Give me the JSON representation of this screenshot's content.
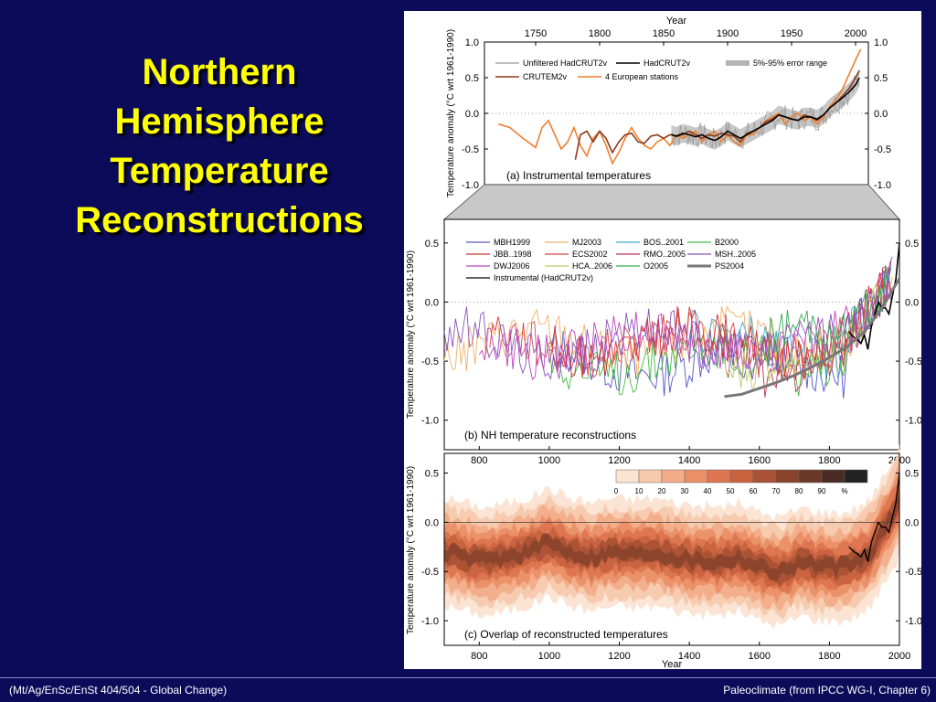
{
  "slide": {
    "title_lines": [
      "Northern",
      "Hemisphere",
      "Temperature",
      "Reconstructions"
    ],
    "footer_left": "(Mt/Ag/EnSc/EnSt 404/504 - Global Change)",
    "footer_right": "Paleoclimate (from IPCC WG-I, Chapter 6)",
    "background": "#0b0b5a",
    "title_color": "#ffff00"
  },
  "chart_data": [
    {
      "type": "line",
      "panel": "a",
      "caption": "(a) Instrumental temperatures",
      "xlabel": "Year",
      "ylabel": "Temperature anomaly  (°C wrt 1961-1990)",
      "xlim": [
        1710,
        2010
      ],
      "ylim": [
        -1.0,
        1.0
      ],
      "xticks": [
        1750,
        1800,
        1850,
        1900,
        1950,
        2000
      ],
      "yticks": [
        1.0,
        0.5,
        0.0,
        -0.5,
        -1.0
      ],
      "ytick_labels": [
        "1.0",
        "0.5",
        "0.0",
        "-0.5",
        "-1.0"
      ],
      "legend": [
        {
          "name": "Unfiltered HadCRUT2v",
          "color": "#aaaaaa"
        },
        {
          "name": "HadCRUT2v",
          "color": "#000000"
        },
        {
          "name": "5%-95% error range",
          "color": "#b4b4b4"
        },
        {
          "name": "CRUTEM2v",
          "color": "#8b3a1a"
        },
        {
          "name": "4 European stations",
          "color": "#ee7f2d"
        }
      ],
      "series": [
        {
          "name": "4 European stations",
          "color": "#ee7f2d",
          "x": [
            1721,
            1730,
            1740,
            1750,
            1755,
            1760,
            1765,
            1770,
            1775,
            1780,
            1785,
            1790,
            1795,
            1800,
            1805,
            1810,
            1815,
            1820,
            1825,
            1830,
            1835,
            1840,
            1845,
            1850,
            1855,
            1860,
            1865,
            1870,
            1875,
            1880,
            1885,
            1890,
            1895,
            1900,
            1905,
            1910,
            1915,
            1920,
            1925,
            1930,
            1935,
            1940,
            1945,
            1950,
            1955,
            1960,
            1965,
            1970,
            1975,
            1980,
            1985,
            1990,
            1995,
            2000,
            2004
          ],
          "y": [
            -0.15,
            -0.2,
            -0.35,
            -0.48,
            -0.2,
            -0.1,
            -0.3,
            -0.5,
            -0.4,
            -0.2,
            -0.45,
            -0.6,
            -0.35,
            -0.25,
            -0.45,
            -0.7,
            -0.55,
            -0.35,
            -0.2,
            -0.35,
            -0.45,
            -0.5,
            -0.4,
            -0.35,
            -0.45,
            -0.3,
            -0.35,
            -0.3,
            -0.25,
            -0.4,
            -0.3,
            -0.25,
            -0.4,
            -0.3,
            -0.4,
            -0.45,
            -0.3,
            -0.3,
            -0.2,
            -0.1,
            -0.05,
            0.0,
            -0.15,
            -0.05,
            0.0,
            -0.1,
            -0.05,
            -0.15,
            -0.05,
            0.1,
            0.2,
            0.35,
            0.55,
            0.75,
            0.9
          ]
        },
        {
          "name": "CRUTEM2v",
          "color": "#8b3a1a",
          "x": [
            1781,
            1785,
            1790,
            1795,
            1800,
            1805,
            1810,
            1815,
            1820,
            1825,
            1830,
            1835,
            1840,
            1845,
            1850,
            1855,
            1860,
            1865,
            1870,
            1875,
            1880,
            1885,
            1890,
            1895,
            1900,
            1905,
            1910,
            1915,
            1920,
            1925,
            1930,
            1935,
            1940,
            1945,
            1950,
            1955,
            1960,
            1965,
            1970,
            1975,
            1980,
            1985,
            1990,
            1995,
            2000,
            2003
          ],
          "y": [
            -0.65,
            -0.3,
            -0.25,
            -0.4,
            -0.25,
            -0.35,
            -0.55,
            -0.4,
            -0.3,
            -0.28,
            -0.4,
            -0.42,
            -0.32,
            -0.3,
            -0.35,
            -0.3,
            -0.32,
            -0.3,
            -0.25,
            -0.3,
            -0.35,
            -0.3,
            -0.32,
            -0.28,
            -0.3,
            -0.32,
            -0.4,
            -0.28,
            -0.25,
            -0.2,
            -0.12,
            -0.08,
            -0.02,
            -0.05,
            -0.08,
            -0.1,
            -0.02,
            -0.05,
            -0.1,
            -0.02,
            0.08,
            0.15,
            0.25,
            0.35,
            0.5,
            0.6
          ]
        },
        {
          "name": "HadCRUT2v",
          "color": "#000000",
          "x": [
            1856,
            1860,
            1865,
            1870,
            1875,
            1880,
            1885,
            1890,
            1895,
            1900,
            1905,
            1910,
            1915,
            1920,
            1925,
            1930,
            1935,
            1940,
            1945,
            1950,
            1955,
            1960,
            1965,
            1970,
            1975,
            1980,
            1985,
            1990,
            1995,
            2000,
            2003
          ],
          "y": [
            -0.3,
            -0.32,
            -0.28,
            -0.3,
            -0.33,
            -0.3,
            -0.35,
            -0.38,
            -0.33,
            -0.25,
            -0.3,
            -0.35,
            -0.3,
            -0.25,
            -0.2,
            -0.15,
            -0.1,
            -0.02,
            -0.05,
            -0.08,
            -0.1,
            -0.05,
            -0.05,
            -0.08,
            -0.02,
            0.08,
            0.15,
            0.22,
            0.3,
            0.4,
            0.5
          ]
        }
      ]
    },
    {
      "type": "line",
      "panel": "b",
      "caption": "(b) NH temperature reconstructions",
      "ylabel": "Temperature anomaly  (°C wrt 1961-1990)",
      "xlim": [
        700,
        2000
      ],
      "ylim": [
        -1.25,
        0.7
      ],
      "xticks": [
        800,
        1000,
        1200,
        1400,
        1600,
        1800,
        2000
      ],
      "yticks": [
        0.5,
        0.0,
        -0.5,
        -1.0
      ],
      "ytick_labels": [
        "0.5",
        "0.0",
        "-0.5",
        "-1.0"
      ],
      "legend": [
        {
          "name": "MBH1999",
          "color": "#5555cc"
        },
        {
          "name": "MJ2003",
          "color": "#f2b066"
        },
        {
          "name": "BOS..2001",
          "color": "#44aacc"
        },
        {
          "name": "B2000",
          "color": "#44bb44"
        },
        {
          "name": "JBB..1998",
          "color": "#cc3333"
        },
        {
          "name": "ECS2002",
          "color": "#dd4444"
        },
        {
          "name": "RMO..2005",
          "color": "#bb3355"
        },
        {
          "name": "MSH..2005",
          "color": "#8855bb"
        },
        {
          "name": "DWJ2006",
          "color": "#bb44bb"
        },
        {
          "name": "HCA..2006",
          "color": "#bbcc66"
        },
        {
          "name": "O2005",
          "color": "#33aa55"
        },
        {
          "name": "PS2004",
          "color": "#777777"
        },
        {
          "name": "Instrumental (HadCRUT2v)",
          "color": "#000000"
        }
      ],
      "series": [
        {
          "name": "Instrumental (HadCRUT2v)",
          "color": "#000000",
          "x": [
            1856,
            1870,
            1880,
            1890,
            1900,
            1910,
            1920,
            1930,
            1940,
            1950,
            1960,
            1970,
            1980,
            1990,
            2000
          ],
          "y": [
            -0.25,
            -0.3,
            -0.32,
            -0.35,
            -0.28,
            -0.4,
            -0.2,
            -0.1,
            0.0,
            -0.05,
            -0.05,
            -0.1,
            0.05,
            0.2,
            0.5
          ]
        },
        {
          "name": "PS2004",
          "color": "#777777",
          "x": [
            1500,
            1550,
            1600,
            1650,
            1700,
            1750,
            1800,
            1850,
            1900,
            1950,
            2000
          ],
          "y": [
            -0.8,
            -0.78,
            -0.73,
            -0.68,
            -0.62,
            -0.55,
            -0.47,
            -0.38,
            -0.25,
            -0.05,
            0.2
          ]
        }
      ]
    },
    {
      "type": "heatmap",
      "panel": "c",
      "caption": "(c) Overlap of reconstructed temperatures",
      "xlabel": "Year",
      "ylabel": "Temperature anomaly  (°C wrt 1961-1990)",
      "xlim": [
        700,
        2000
      ],
      "ylim": [
        -1.25,
        0.7
      ],
      "xticks": [
        800,
        1000,
        1200,
        1400,
        1600,
        1800,
        2000
      ],
      "yticks": [
        0.5,
        0.0,
        -0.5,
        -1.0
      ],
      "ytick_labels": [
        "0.5",
        "0.0",
        "-0.5",
        "-1.0"
      ],
      "colorbar_ticks": [
        "0",
        "10",
        "20",
        "30",
        "40",
        "50",
        "60",
        "70",
        "80",
        "90",
        "%"
      ],
      "colorbar_colors": [
        "#fbe3d2",
        "#f7c9ad",
        "#f2ad89",
        "#ea9068",
        "#dd7650",
        "#c8623f",
        "#aa5235",
        "#8a442c",
        "#6b3828",
        "#4a2b22",
        "#222222"
      ],
      "overlap_center": {
        "x": [
          700,
          760,
          820,
          880,
          940,
          1000,
          1060,
          1120,
          1180,
          1240,
          1300,
          1360,
          1420,
          1480,
          1540,
          1600,
          1660,
          1720,
          1780,
          1840,
          1880,
          1920,
          1960,
          2000
        ],
        "y": [
          -0.3,
          -0.35,
          -0.4,
          -0.35,
          -0.3,
          -0.2,
          -0.3,
          -0.35,
          -0.3,
          -0.32,
          -0.3,
          -0.35,
          -0.38,
          -0.4,
          -0.35,
          -0.45,
          -0.5,
          -0.4,
          -0.45,
          -0.45,
          -0.4,
          -0.3,
          -0.05,
          0.2
        ]
      },
      "instrumental": {
        "x": [
          1856,
          1870,
          1880,
          1890,
          1900,
          1910,
          1920,
          1930,
          1940,
          1950,
          1960,
          1970,
          1980,
          1990,
          2000
        ],
        "y": [
          -0.25,
          -0.3,
          -0.32,
          -0.35,
          -0.28,
          -0.4,
          -0.2,
          -0.1,
          0.0,
          -0.05,
          -0.05,
          -0.1,
          0.05,
          0.2,
          0.5
        ]
      }
    }
  ]
}
